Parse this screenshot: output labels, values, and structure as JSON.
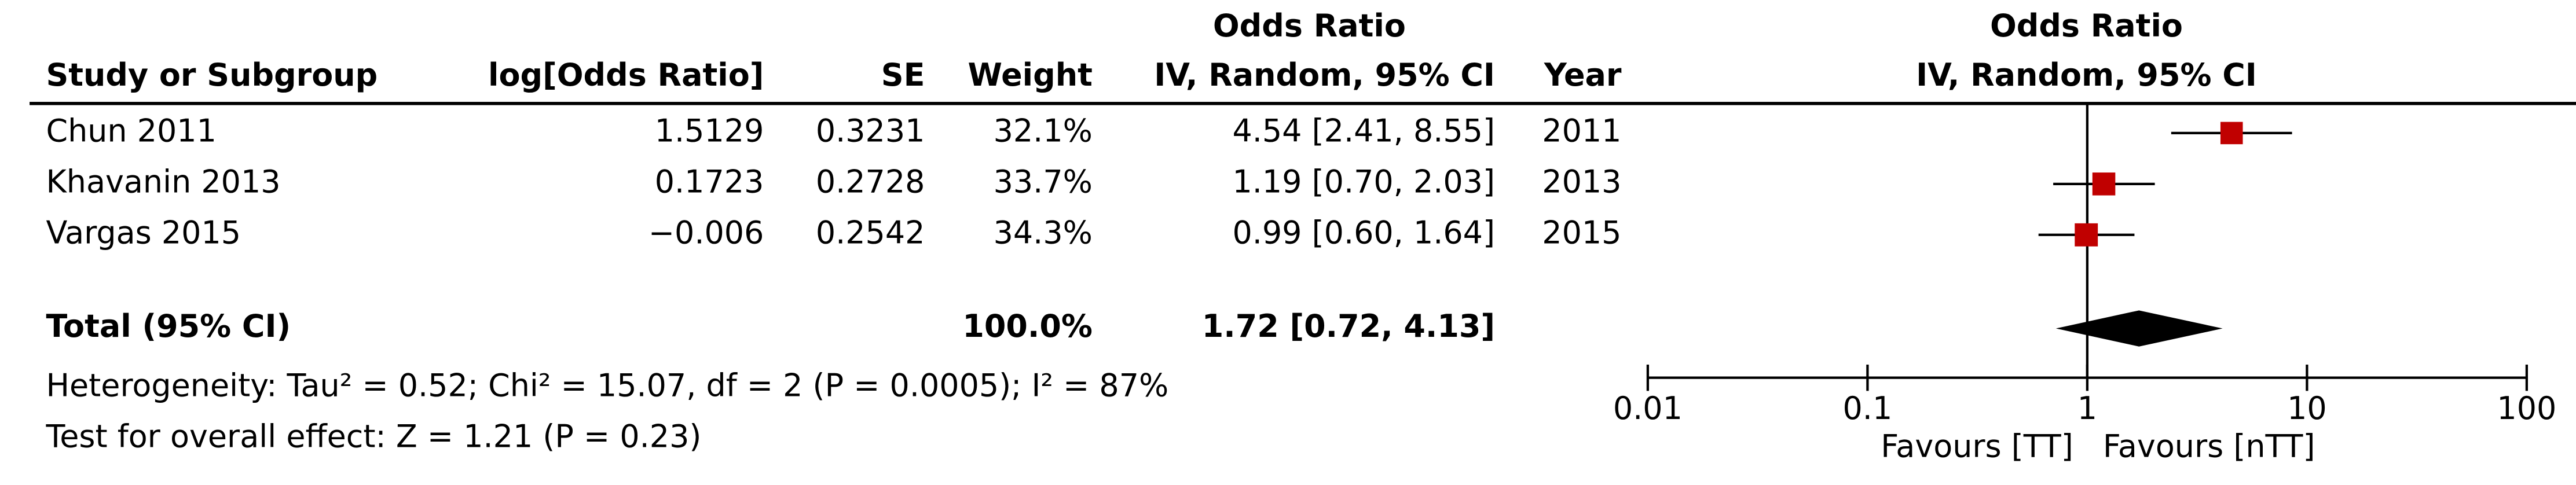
{
  "table": {
    "group_header": "Odds Ratio",
    "columns": [
      "Study or Subgroup",
      "log[Odds Ratio]",
      "SE",
      "Weight",
      "IV, Random, 95% CI",
      "Year"
    ],
    "rows": [
      [
        "Chun 2011",
        "1.5129",
        "0.3231",
        "32.1%",
        "4.54 [2.41, 8.55]",
        "2011"
      ],
      [
        "Khavanin 2013",
        "0.1723",
        "0.2728",
        "33.7%",
        "1.19 [0.70, 2.03]",
        "2013"
      ],
      [
        "Vargas 2015",
        "−0.006",
        "0.2542",
        "34.3%",
        "0.99 [0.60, 1.64]",
        "2015"
      ]
    ],
    "total": [
      "Total (95% CI)",
      "100.0%",
      "1.72 [0.72, 4.13]"
    ],
    "heterogeneity": "Heterogeneity: Tau² = 0.52; Chi² = 15.07, df = 2 (P = 0.0005); I² = 87%",
    "overall": "Test for overall effect: Z = 1.21 (P = 0.23)"
  },
  "chart_data": {
    "type": "forest",
    "title": "Odds Ratio",
    "subtitle": "IV, Random, 95% CI",
    "values": [
      4.54,
      1.19,
      0.99
    ],
    "ci_low": [
      2.41,
      0.7,
      0.6
    ],
    "ci_high": [
      8.55,
      2.03,
      1.64
    ],
    "weights": [
      32.1,
      33.7,
      34.3
    ],
    "total": {
      "value": 1.72,
      "low": 0.72,
      "high": 4.13
    },
    "xlim": [
      0.01,
      100
    ],
    "xticks": [
      0.01,
      0.1,
      1,
      10,
      100
    ],
    "log": true,
    "color": "#c00000",
    "xlabel_left": "Favours [TT]",
    "xlabel_right": "Favours [nTT]"
  }
}
